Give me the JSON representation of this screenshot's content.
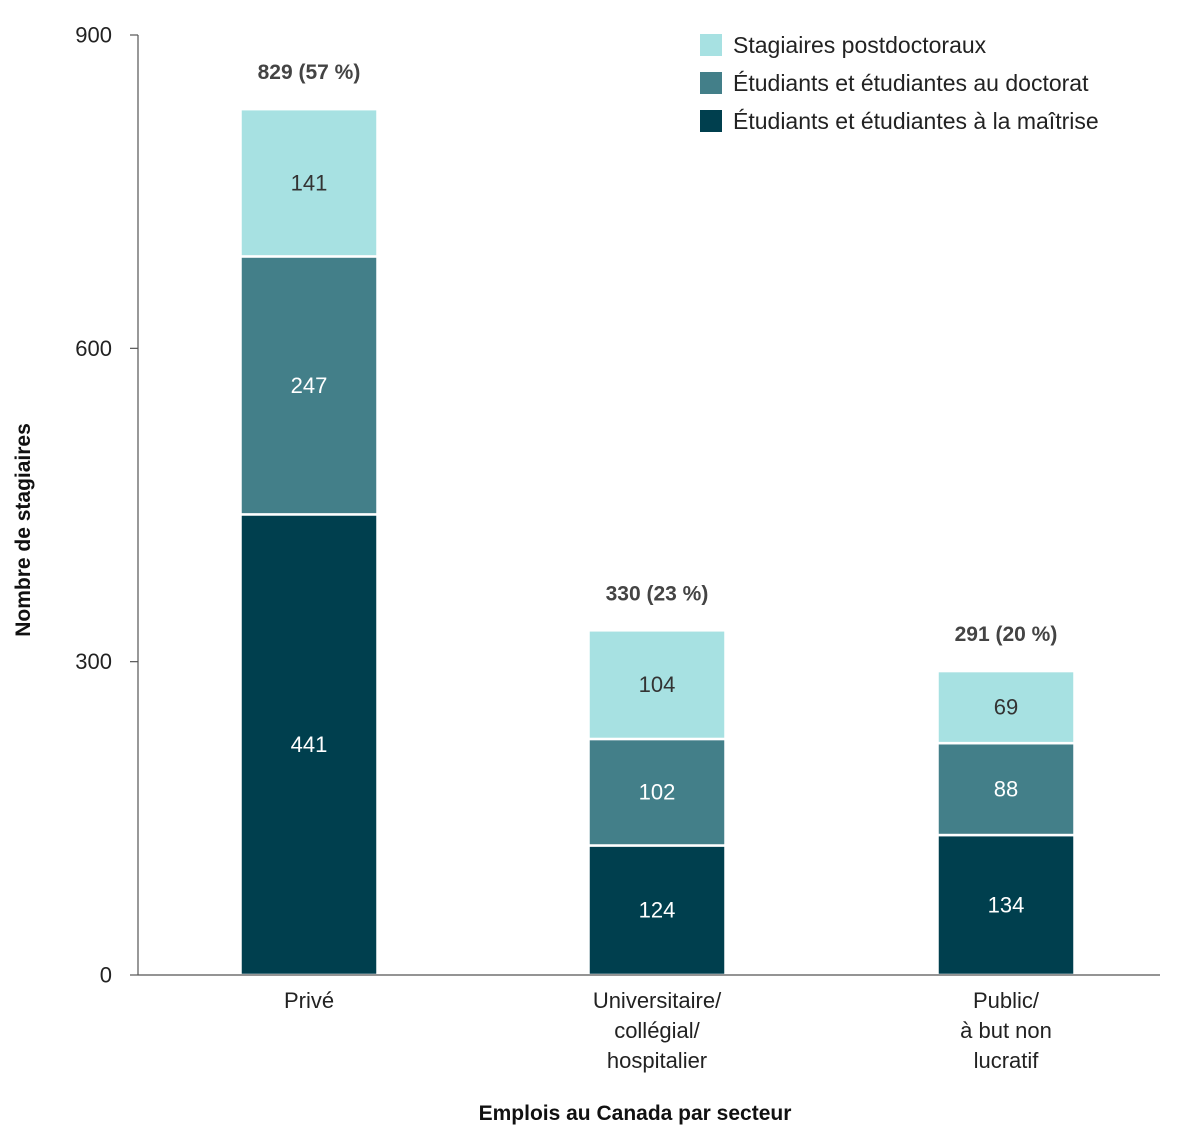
{
  "chart_data": {
    "type": "bar",
    "stacked": true,
    "categories": [
      [
        "Privé"
      ],
      [
        "Universitaire/",
        "collégial/",
        "hospitalier"
      ],
      [
        "Public/",
        "à but non",
        "lucratif"
      ]
    ],
    "series": [
      {
        "name": "Étudiants et étudiantes à la maîtrise",
        "values": [
          441,
          124,
          134
        ],
        "color": "#003f4e",
        "label_color": "#ffffff"
      },
      {
        "name": "Étudiants et étudiantes au doctorat",
        "values": [
          247,
          102,
          88
        ],
        "color": "#437f89",
        "label_color": "#ffffff"
      },
      {
        "name": "Stagiaires postdoctoraux",
        "values": [
          141,
          104,
          69
        ],
        "color": "#a7e1e2",
        "label_color": "#333333"
      }
    ],
    "totals": [
      "829 (57 %)",
      "330 (23 %)",
      "291 (20 %)"
    ],
    "xlabel": "Emplois au Canada par secteur",
    "ylabel": "Nombre de stagiaires",
    "ylim": [
      0,
      900
    ],
    "yticks": [
      0,
      300,
      600,
      900
    ],
    "legend": {
      "position": "top-right",
      "order": [
        "Stagiaires postdoctoraux",
        "Étudiants et étudiantes au doctorat",
        "Étudiants et étudiantes à la maîtrise"
      ]
    },
    "grid": false
  }
}
